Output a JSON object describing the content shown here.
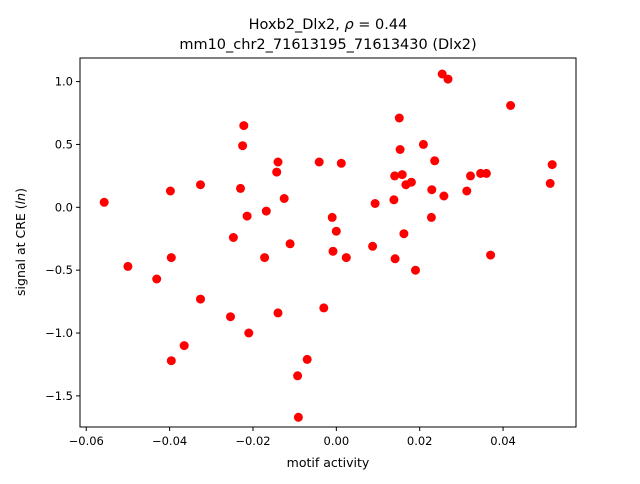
{
  "chart_data": {
    "type": "scatter",
    "title_line1_prefix": "Hoxb2_Dlx2, ",
    "title_rho_symbol": "ρ",
    "title_rho_suffix": " = 0.44",
    "title_line2": "mm10_chr2_71613195_71613430 (Dlx2)",
    "xlabel": "motif activity",
    "ylabel_prefix": "signal at CRE (",
    "ylabel_italic": "ln",
    "ylabel_suffix": ")",
    "xlim": [
      -0.0615,
      0.0575
    ],
    "ylim": [
      -1.7475,
      1.1875
    ],
    "xticks": [
      -0.06,
      -0.04,
      -0.02,
      0.0,
      0.02,
      0.04
    ],
    "xtick_labels": [
      "−0.06",
      "−0.04",
      "−0.02",
      "0.00",
      "0.02",
      "0.04"
    ],
    "yticks": [
      -1.5,
      -1.0,
      -0.5,
      0.0,
      0.5,
      1.0
    ],
    "ytick_labels": [
      "−1.5",
      "−1.0",
      "−0.5",
      "0.0",
      "0.5",
      "1.0"
    ],
    "grid": false,
    "marker_color": "#ff0000",
    "points": [
      {
        "x": -0.0557,
        "y": 0.04
      },
      {
        "x": -0.05,
        "y": -0.47
      },
      {
        "x": -0.0431,
        "y": -0.57
      },
      {
        "x": -0.0398,
        "y": 0.13
      },
      {
        "x": -0.0396,
        "y": -0.4
      },
      {
        "x": -0.0396,
        "y": -1.22
      },
      {
        "x": -0.0365,
        "y": -1.1
      },
      {
        "x": -0.0326,
        "y": 0.18
      },
      {
        "x": -0.0326,
        "y": -0.73
      },
      {
        "x": -0.0254,
        "y": -0.87
      },
      {
        "x": -0.0247,
        "y": -0.24
      },
      {
        "x": -0.023,
        "y": 0.15
      },
      {
        "x": -0.0225,
        "y": 0.49
      },
      {
        "x": -0.0222,
        "y": 0.65
      },
      {
        "x": -0.0214,
        "y": -0.07
      },
      {
        "x": -0.021,
        "y": -1.0
      },
      {
        "x": -0.0172,
        "y": -0.4
      },
      {
        "x": -0.0168,
        "y": -0.03
      },
      {
        "x": -0.0143,
        "y": 0.28
      },
      {
        "x": -0.014,
        "y": 0.36
      },
      {
        "x": -0.014,
        "y": -0.84
      },
      {
        "x": -0.0125,
        "y": 0.07
      },
      {
        "x": -0.0111,
        "y": -0.29
      },
      {
        "x": -0.0093,
        "y": -1.34
      },
      {
        "x": -0.0091,
        "y": -1.67
      },
      {
        "x": -0.007,
        "y": -1.21
      },
      {
        "x": -0.0041,
        "y": 0.36
      },
      {
        "x": -0.003,
        "y": -0.8
      },
      {
        "x": -0.001,
        "y": -0.08
      },
      {
        "x": -0.0008,
        "y": -0.35
      },
      {
        "x": 0.0,
        "y": -0.19
      },
      {
        "x": 0.0012,
        "y": 0.35
      },
      {
        "x": 0.0024,
        "y": -0.4
      },
      {
        "x": 0.0087,
        "y": -0.31
      },
      {
        "x": 0.0093,
        "y": 0.03
      },
      {
        "x": 0.0138,
        "y": 0.06
      },
      {
        "x": 0.014,
        "y": 0.25
      },
      {
        "x": 0.0141,
        "y": -0.41
      },
      {
        "x": 0.0151,
        "y": 0.71
      },
      {
        "x": 0.0153,
        "y": 0.46
      },
      {
        "x": 0.0158,
        "y": 0.26
      },
      {
        "x": 0.0162,
        "y": -0.21
      },
      {
        "x": 0.0167,
        "y": 0.18
      },
      {
        "x": 0.018,
        "y": 0.2
      },
      {
        "x": 0.019,
        "y": -0.5
      },
      {
        "x": 0.0209,
        "y": 0.5
      },
      {
        "x": 0.0228,
        "y": -0.08
      },
      {
        "x": 0.0229,
        "y": 0.14
      },
      {
        "x": 0.0236,
        "y": 0.37
      },
      {
        "x": 0.0254,
        "y": 1.06
      },
      {
        "x": 0.0258,
        "y": 0.09
      },
      {
        "x": 0.0268,
        "y": 1.02
      },
      {
        "x": 0.0313,
        "y": 0.13
      },
      {
        "x": 0.0322,
        "y": 0.25
      },
      {
        "x": 0.0346,
        "y": 0.27
      },
      {
        "x": 0.036,
        "y": 0.27
      },
      {
        "x": 0.037,
        "y": -0.38
      },
      {
        "x": 0.0418,
        "y": 0.81
      },
      {
        "x": 0.0513,
        "y": 0.19
      },
      {
        "x": 0.0518,
        "y": 0.34
      }
    ]
  }
}
